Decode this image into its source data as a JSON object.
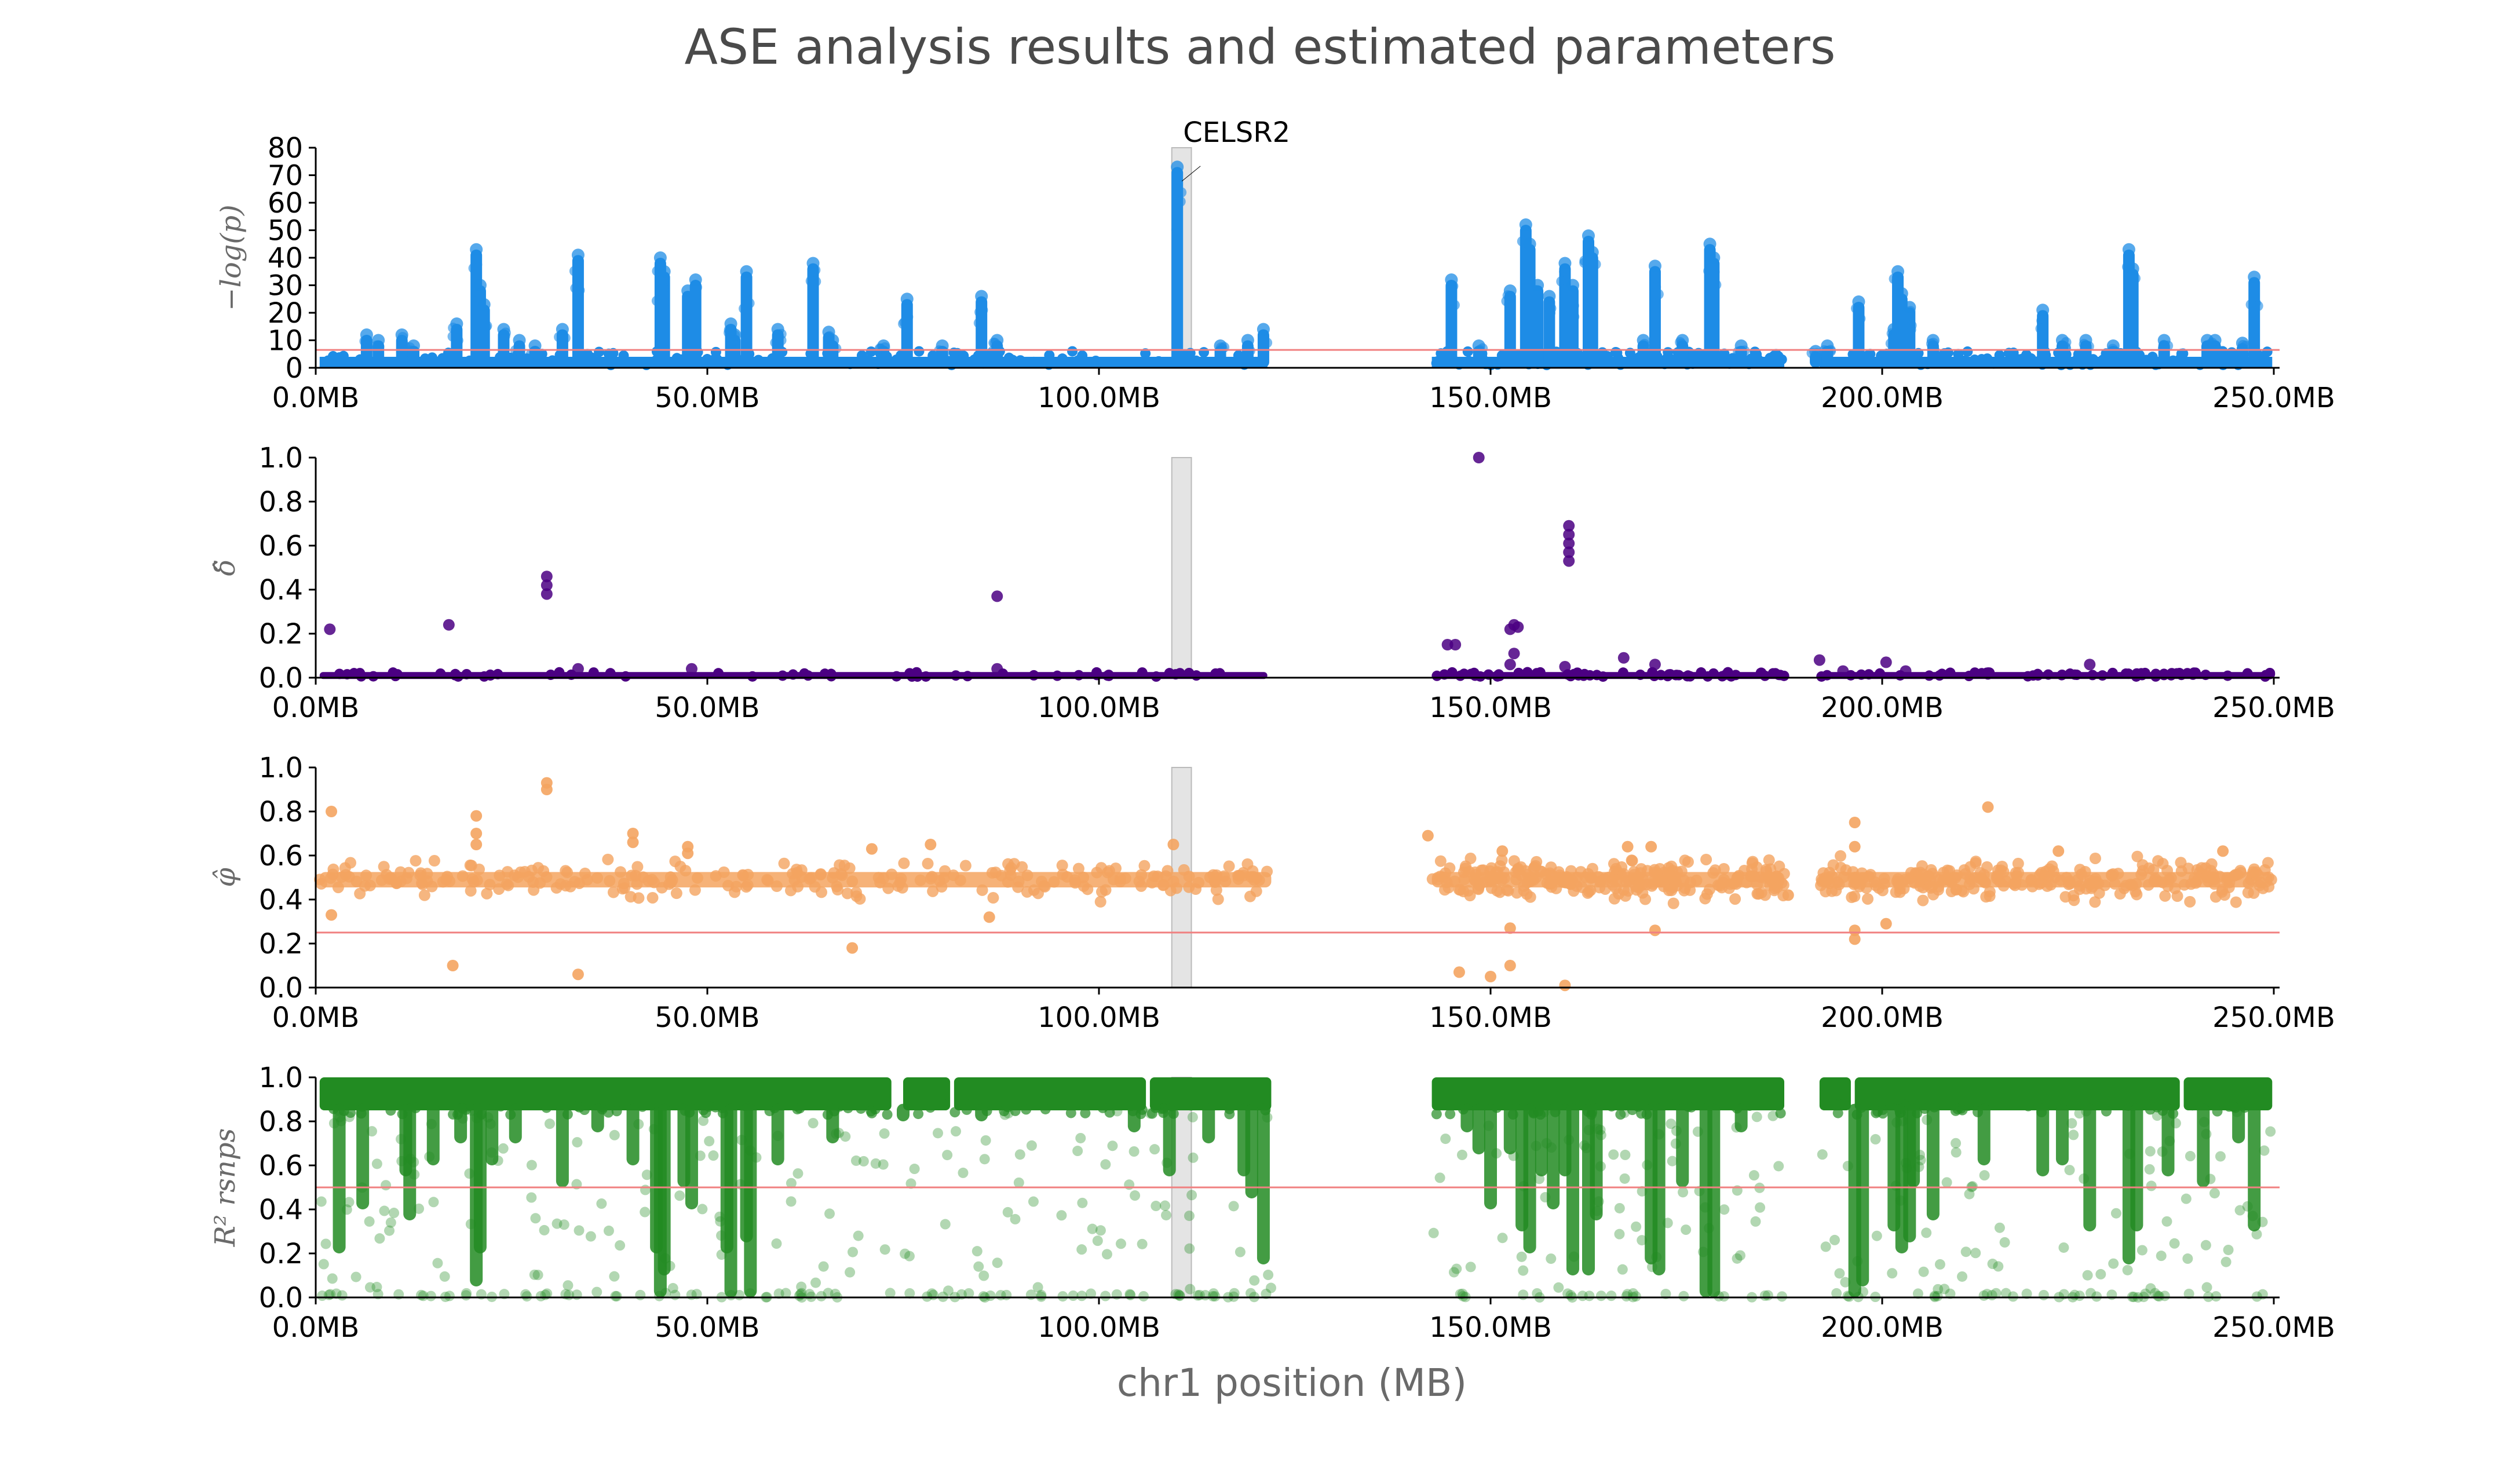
{
  "figure": {
    "title": "ASE analysis results and estimated parameters",
    "xlabel": "chr1 position (MB)"
  },
  "chart_data": [
    {
      "type": "scatter",
      "id": "pvalue",
      "ylabel": "−log(p)",
      "xlim": [
        0,
        250
      ],
      "ylim": [
        0,
        80
      ],
      "yticks": [
        "0",
        "10",
        "20",
        "30",
        "40",
        "50",
        "60",
        "70",
        "80"
      ],
      "ytick_values": [
        0,
        10,
        20,
        30,
        40,
        50,
        60,
        70,
        80
      ],
      "xticks": [
        "0.0MB",
        "50.0MB",
        "100.0MB",
        "150.0MB",
        "200.0MB",
        "250.0MB"
      ],
      "xtick_values": [
        0,
        50,
        100,
        150,
        200,
        250
      ],
      "color": "#1e8ce6",
      "threshold": 6.5,
      "threshold_color": "#f08080",
      "highlight_region": [
        109.3,
        111.8
      ],
      "annotation": {
        "text": "CELSR2",
        "x": 110.0,
        "y": 67
      },
      "baseline_segments": [
        [
          0.5,
          121.5
        ],
        [
          142.5,
          187.5
        ],
        [
          192.0,
          249.8
        ]
      ],
      "peaks": [
        {
          "x": 6.5,
          "y": 12
        },
        {
          "x": 8.0,
          "y": 10
        },
        {
          "x": 11.0,
          "y": 12
        },
        {
          "x": 12.5,
          "y": 8
        },
        {
          "x": 18.0,
          "y": 16
        },
        {
          "x": 20.5,
          "y": 43
        },
        {
          "x": 21.0,
          "y": 30
        },
        {
          "x": 21.5,
          "y": 23
        },
        {
          "x": 24.0,
          "y": 14
        },
        {
          "x": 26.0,
          "y": 10
        },
        {
          "x": 28.0,
          "y": 8
        },
        {
          "x": 31.5,
          "y": 14
        },
        {
          "x": 33.5,
          "y": 41
        },
        {
          "x": 44.0,
          "y": 40
        },
        {
          "x": 44.5,
          "y": 35
        },
        {
          "x": 47.5,
          "y": 28
        },
        {
          "x": 48.5,
          "y": 32
        },
        {
          "x": 53.0,
          "y": 16
        },
        {
          "x": 53.5,
          "y": 12
        },
        {
          "x": 55.0,
          "y": 35
        },
        {
          "x": 59.0,
          "y": 14
        },
        {
          "x": 63.5,
          "y": 38
        },
        {
          "x": 65.5,
          "y": 13
        },
        {
          "x": 66.0,
          "y": 10
        },
        {
          "x": 72.5,
          "y": 8
        },
        {
          "x": 75.5,
          "y": 25
        },
        {
          "x": 80.0,
          "y": 8
        },
        {
          "x": 85.0,
          "y": 26
        },
        {
          "x": 87.0,
          "y": 10
        },
        {
          "x": 110.0,
          "y": 73
        },
        {
          "x": 115.5,
          "y": 8
        },
        {
          "x": 119.0,
          "y": 10
        },
        {
          "x": 121.0,
          "y": 14
        },
        {
          "x": 145.0,
          "y": 32
        },
        {
          "x": 148.5,
          "y": 8
        },
        {
          "x": 152.5,
          "y": 28
        },
        {
          "x": 154.5,
          "y": 52
        },
        {
          "x": 155.0,
          "y": 45
        },
        {
          "x": 156.0,
          "y": 30
        },
        {
          "x": 157.5,
          "y": 26
        },
        {
          "x": 159.5,
          "y": 38
        },
        {
          "x": 160.5,
          "y": 30
        },
        {
          "x": 162.5,
          "y": 48
        },
        {
          "x": 163.0,
          "y": 42
        },
        {
          "x": 169.5,
          "y": 10
        },
        {
          "x": 171.0,
          "y": 37
        },
        {
          "x": 174.5,
          "y": 10
        },
        {
          "x": 178.0,
          "y": 45
        },
        {
          "x": 178.5,
          "y": 40
        },
        {
          "x": 182.0,
          "y": 8
        },
        {
          "x": 191.5,
          "y": 6
        },
        {
          "x": 193.0,
          "y": 8
        },
        {
          "x": 197.0,
          "y": 24
        },
        {
          "x": 201.5,
          "y": 14
        },
        {
          "x": 202.0,
          "y": 35
        },
        {
          "x": 202.5,
          "y": 27
        },
        {
          "x": 203.5,
          "y": 22
        },
        {
          "x": 206.5,
          "y": 10
        },
        {
          "x": 220.5,
          "y": 21
        },
        {
          "x": 223.0,
          "y": 10
        },
        {
          "x": 226.0,
          "y": 10
        },
        {
          "x": 229.5,
          "y": 8
        },
        {
          "x": 231.5,
          "y": 43
        },
        {
          "x": 232.0,
          "y": 36
        },
        {
          "x": 236.0,
          "y": 10
        },
        {
          "x": 241.5,
          "y": 10
        },
        {
          "x": 242.5,
          "y": 10
        },
        {
          "x": 246.0,
          "y": 9
        },
        {
          "x": 247.5,
          "y": 33
        }
      ]
    },
    {
      "type": "scatter",
      "id": "delta",
      "ylabel": "δ̂",
      "xlim": [
        0,
        250
      ],
      "ylim": [
        0,
        1
      ],
      "yticks": [
        "0.0",
        "0.2",
        "0.4",
        "0.6",
        "0.8",
        "1.0"
      ],
      "ytick_values": [
        0,
        0.2,
        0.4,
        0.6,
        0.8,
        1.0
      ],
      "xticks": [
        "0.0MB",
        "50.0MB",
        "100.0MB",
        "150.0MB",
        "200.0MB",
        "250.0MB"
      ],
      "xtick_values": [
        0,
        50,
        100,
        150,
        200,
        250
      ],
      "color": "#4b0082",
      "highlight_region": [
        109.3,
        111.8
      ],
      "baseline_segments": [
        [
          0.5,
          121.5
        ],
        [
          142.5,
          187.5
        ],
        [
          192.0,
          249.8
        ]
      ],
      "baseline_y": 0.01,
      "points": [
        {
          "x": 1.8,
          "y": 0.22
        },
        {
          "x": 17.0,
          "y": 0.24
        },
        {
          "x": 29.5,
          "y": 0.46
        },
        {
          "x": 29.5,
          "y": 0.42
        },
        {
          "x": 29.5,
          "y": 0.38
        },
        {
          "x": 33.5,
          "y": 0.04
        },
        {
          "x": 87.0,
          "y": 0.37
        },
        {
          "x": 87.0,
          "y": 0.04
        },
        {
          "x": 48.0,
          "y": 0.04
        },
        {
          "x": 144.5,
          "y": 0.15
        },
        {
          "x": 145.5,
          "y": 0.15
        },
        {
          "x": 148.5,
          "y": 1.0
        },
        {
          "x": 152.5,
          "y": 0.22
        },
        {
          "x": 153.0,
          "y": 0.24
        },
        {
          "x": 153.5,
          "y": 0.23
        },
        {
          "x": 153.0,
          "y": 0.11
        },
        {
          "x": 152.5,
          "y": 0.06
        },
        {
          "x": 160.0,
          "y": 0.69
        },
        {
          "x": 160.0,
          "y": 0.65
        },
        {
          "x": 160.0,
          "y": 0.61
        },
        {
          "x": 160.0,
          "y": 0.57
        },
        {
          "x": 160.0,
          "y": 0.53
        },
        {
          "x": 159.5,
          "y": 0.05
        },
        {
          "x": 167.0,
          "y": 0.09
        },
        {
          "x": 171.0,
          "y": 0.06
        },
        {
          "x": 192.0,
          "y": 0.08
        },
        {
          "x": 200.5,
          "y": 0.07
        },
        {
          "x": 226.5,
          "y": 0.06
        },
        {
          "x": 195.0,
          "y": 0.03
        },
        {
          "x": 203.0,
          "y": 0.03
        }
      ]
    },
    {
      "type": "scatter",
      "id": "phi",
      "ylabel": "φ̂",
      "xlim": [
        0,
        250
      ],
      "ylim": [
        0,
        1
      ],
      "yticks": [
        "0.0",
        "0.2",
        "0.4",
        "0.6",
        "0.8",
        "1.0"
      ],
      "ytick_values": [
        0,
        0.2,
        0.4,
        0.6,
        0.8,
        1.0
      ],
      "xticks": [
        "0.0MB",
        "50.0MB",
        "100.0MB",
        "150.0MB",
        "200.0MB",
        "250.0MB"
      ],
      "xtick_values": [
        0,
        50,
        100,
        150,
        200,
        250
      ],
      "color": "#f4a460",
      "threshold": 0.25,
      "threshold_color": "#f08080",
      "highlight_region": [
        109.3,
        111.8
      ],
      "band_segments": [
        [
          0.5,
          122.0
        ],
        [
          142.5,
          187.5
        ],
        [
          192.0,
          249.8
        ]
      ],
      "band_center": 0.49,
      "outliers": [
        {
          "x": 2.0,
          "y": 0.8
        },
        {
          "x": 2.0,
          "y": 0.33
        },
        {
          "x": 17.5,
          "y": 0.1
        },
        {
          "x": 20.5,
          "y": 0.78
        },
        {
          "x": 20.5,
          "y": 0.7
        },
        {
          "x": 20.5,
          "y": 0.65
        },
        {
          "x": 29.5,
          "y": 0.93
        },
        {
          "x": 29.5,
          "y": 0.9
        },
        {
          "x": 33.5,
          "y": 0.06
        },
        {
          "x": 40.5,
          "y": 0.7
        },
        {
          "x": 40.5,
          "y": 0.66
        },
        {
          "x": 47.5,
          "y": 0.64
        },
        {
          "x": 47.5,
          "y": 0.61
        },
        {
          "x": 68.5,
          "y": 0.18
        },
        {
          "x": 71.0,
          "y": 0.63
        },
        {
          "x": 78.5,
          "y": 0.65
        },
        {
          "x": 86.0,
          "y": 0.32
        },
        {
          "x": 109.5,
          "y": 0.65
        },
        {
          "x": 142.0,
          "y": 0.69
        },
        {
          "x": 146.0,
          "y": 0.07
        },
        {
          "x": 150.0,
          "y": 0.05
        },
        {
          "x": 151.5,
          "y": 0.62
        },
        {
          "x": 152.5,
          "y": 0.1
        },
        {
          "x": 152.5,
          "y": 0.27
        },
        {
          "x": 159.5,
          "y": 0.01
        },
        {
          "x": 167.5,
          "y": 0.64
        },
        {
          "x": 170.5,
          "y": 0.64
        },
        {
          "x": 171.0,
          "y": 0.26
        },
        {
          "x": 188.0,
          "y": 0.42
        },
        {
          "x": 196.5,
          "y": 0.75
        },
        {
          "x": 196.5,
          "y": 0.64
        },
        {
          "x": 196.5,
          "y": 0.26
        },
        {
          "x": 196.5,
          "y": 0.22
        },
        {
          "x": 200.5,
          "y": 0.29
        },
        {
          "x": 213.5,
          "y": 0.82
        },
        {
          "x": 222.5,
          "y": 0.62
        },
        {
          "x": 243.5,
          "y": 0.62
        }
      ]
    },
    {
      "type": "scatter",
      "id": "r2",
      "ylabel": "R² rsnps",
      "xlim": [
        0,
        250
      ],
      "ylim": [
        0,
        1
      ],
      "yticks": [
        "0.0",
        "0.2",
        "0.4",
        "0.6",
        "0.8",
        "1.0"
      ],
      "ytick_values": [
        0,
        0.2,
        0.4,
        0.6,
        0.8,
        1.0
      ],
      "xticks": [
        "0.0MB",
        "50.0MB",
        "100.0MB",
        "150.0MB",
        "200.0MB",
        "250.0MB"
      ],
      "xtick_values": [
        0,
        50,
        100,
        150,
        200,
        250
      ],
      "color": "#228b22",
      "threshold": 0.5,
      "threshold_color": "#f08080",
      "highlight_region": [
        109.3,
        111.8
      ],
      "top_segments": [
        [
          0.5,
          73.5
        ],
        [
          75.0,
          81.0
        ],
        [
          81.5,
          106.0
        ],
        [
          106.5,
          122.0
        ],
        [
          142.5,
          187.5
        ],
        [
          192.0,
          196.0
        ],
        [
          196.5,
          238.0
        ],
        [
          238.5,
          249.8
        ]
      ],
      "top_band": [
        0.85,
        1.0
      ],
      "drops": [
        {
          "x": 3.0,
          "y": 0.2
        },
        {
          "x": 6.0,
          "y": 0.4
        },
        {
          "x": 11.5,
          "y": 0.55
        },
        {
          "x": 12.0,
          "y": 0.35
        },
        {
          "x": 15.0,
          "y": 0.6
        },
        {
          "x": 18.5,
          "y": 0.7
        },
        {
          "x": 20.5,
          "y": 0.05
        },
        {
          "x": 21.0,
          "y": 0.2
        },
        {
          "x": 22.5,
          "y": 0.6
        },
        {
          "x": 25.5,
          "y": 0.7
        },
        {
          "x": 31.5,
          "y": 0.5
        },
        {
          "x": 36.0,
          "y": 0.75
        },
        {
          "x": 40.5,
          "y": 0.6
        },
        {
          "x": 43.5,
          "y": 0.2
        },
        {
          "x": 44.0,
          "y": 0.0
        },
        {
          "x": 44.5,
          "y": 0.1
        },
        {
          "x": 47.0,
          "y": 0.5
        },
        {
          "x": 48.0,
          "y": 0.4
        },
        {
          "x": 52.5,
          "y": 0.2
        },
        {
          "x": 53.0,
          "y": 0.0
        },
        {
          "x": 55.0,
          "y": 0.25
        },
        {
          "x": 55.5,
          "y": 0.0
        },
        {
          "x": 59.0,
          "y": 0.6
        },
        {
          "x": 66.0,
          "y": 0.7
        },
        {
          "x": 75.0,
          "y": 0.8
        },
        {
          "x": 85.0,
          "y": 0.8
        },
        {
          "x": 104.5,
          "y": 0.75
        },
        {
          "x": 109.0,
          "y": 0.55
        },
        {
          "x": 114.0,
          "y": 0.7
        },
        {
          "x": 118.5,
          "y": 0.55
        },
        {
          "x": 119.5,
          "y": 0.45
        },
        {
          "x": 121.0,
          "y": 0.15
        },
        {
          "x": 147.0,
          "y": 0.75
        },
        {
          "x": 148.5,
          "y": 0.65
        },
        {
          "x": 150.0,
          "y": 0.4
        },
        {
          "x": 152.5,
          "y": 0.65
        },
        {
          "x": 154.0,
          "y": 0.3
        },
        {
          "x": 155.0,
          "y": 0.2
        },
        {
          "x": 156.5,
          "y": 0.55
        },
        {
          "x": 158.0,
          "y": 0.4
        },
        {
          "x": 159.5,
          "y": 0.55
        },
        {
          "x": 160.5,
          "y": 0.1
        },
        {
          "x": 162.5,
          "y": 0.1
        },
        {
          "x": 163.5,
          "y": 0.35
        },
        {
          "x": 170.5,
          "y": 0.15
        },
        {
          "x": 171.5,
          "y": 0.1
        },
        {
          "x": 174.5,
          "y": 0.5
        },
        {
          "x": 177.5,
          "y": 0.0
        },
        {
          "x": 178.5,
          "y": 0.0
        },
        {
          "x": 182.0,
          "y": 0.75
        },
        {
          "x": 196.5,
          "y": 0.0
        },
        {
          "x": 197.5,
          "y": 0.05
        },
        {
          "x": 201.5,
          "y": 0.3
        },
        {
          "x": 202.5,
          "y": 0.2
        },
        {
          "x": 203.5,
          "y": 0.25
        },
        {
          "x": 204.0,
          "y": 0.5
        },
        {
          "x": 206.5,
          "y": 0.35
        },
        {
          "x": 213.0,
          "y": 0.6
        },
        {
          "x": 220.5,
          "y": 0.55
        },
        {
          "x": 223.0,
          "y": 0.6
        },
        {
          "x": 226.5,
          "y": 0.3
        },
        {
          "x": 231.5,
          "y": 0.15
        },
        {
          "x": 232.5,
          "y": 0.3
        },
        {
          "x": 236.5,
          "y": 0.55
        },
        {
          "x": 241.0,
          "y": 0.5
        },
        {
          "x": 245.5,
          "y": 0.7
        },
        {
          "x": 247.5,
          "y": 0.3
        }
      ]
    }
  ]
}
